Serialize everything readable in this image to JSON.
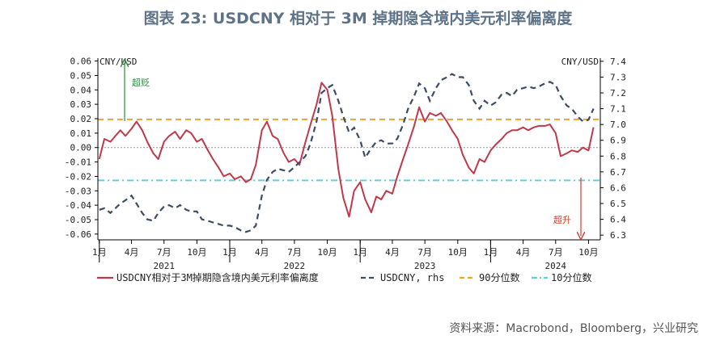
{
  "title": "图表 23: USDCNY 相对于 3M 掉期隐含境内美元利率偏离度",
  "source": "资料来源：Macrobond，Bloomberg，兴业研究",
  "colors": {
    "deviation": "#c0394a",
    "usdcny": "#3d4b63",
    "p90": "#f0a030",
    "p10": "#5fd0e0",
    "title": "#5e7388",
    "zero": "#999999"
  },
  "chart_data": {
    "type": "line",
    "x_tick_labels": [
      "1月",
      "4月",
      "7月",
      "10月",
      "1月",
      "4月",
      "7月",
      "10月",
      "1月",
      "4月",
      "7月",
      "10月",
      "1月",
      "4月",
      "7月",
      "10月"
    ],
    "year_labels": [
      "2021",
      "2022",
      "2023",
      "2024"
    ],
    "left_axis": {
      "label": "CNY/USD",
      "ticks": [
        "0.06",
        "0.05",
        "0.04",
        "0.03",
        "0.02",
        "0.01",
        "0.00",
        "-0.01",
        "-0.02",
        "-0.03",
        "-0.04",
        "-0.05",
        "-0.06"
      ],
      "range": [
        -0.064,
        0.062
      ]
    },
    "right_axis": {
      "label": "CNY/USD",
      "ticks": [
        "7.4",
        "7.3",
        "7.2",
        "7.1",
        "7.0",
        "6.9",
        "6.8",
        "6.7",
        "6.6",
        "6.5",
        "6.4",
        "6.3"
      ],
      "range": [
        6.27,
        7.42
      ]
    },
    "annotations": {
      "top": "超贬",
      "bottom": "超升"
    },
    "series": [
      {
        "name": "USDCNY相对于3M掉期隐含境内美元利率偏离度",
        "axis": "left",
        "x": [
          "2021-01-01",
          "2021-01-15",
          "2021-02-01",
          "2021-02-15",
          "2021-03-01",
          "2021-03-15",
          "2021-04-01",
          "2021-04-15",
          "2021-05-01",
          "2021-05-15",
          "2021-06-01",
          "2021-06-15",
          "2021-07-01",
          "2021-07-15",
          "2021-08-01",
          "2021-08-15",
          "2021-09-01",
          "2021-09-15",
          "2021-10-01",
          "2021-10-15",
          "2021-11-01",
          "2021-11-15",
          "2021-12-01",
          "2021-12-15",
          "2022-01-01",
          "2022-01-15",
          "2022-02-01",
          "2022-02-15",
          "2022-03-01",
          "2022-03-15",
          "2022-04-01",
          "2022-04-15",
          "2022-05-01",
          "2022-05-15",
          "2022-06-01",
          "2022-06-15",
          "2022-07-01",
          "2022-07-15",
          "2022-08-01",
          "2022-08-15",
          "2022-09-01",
          "2022-09-15",
          "2022-10-01",
          "2022-10-15",
          "2022-11-01",
          "2022-11-15",
          "2022-12-01",
          "2022-12-15",
          "2023-01-01",
          "2023-01-15",
          "2023-02-01",
          "2023-02-15",
          "2023-03-01",
          "2023-03-15",
          "2023-04-01",
          "2023-04-15",
          "2023-05-01",
          "2023-05-15",
          "2023-06-01",
          "2023-06-15",
          "2023-07-01",
          "2023-07-15",
          "2023-08-01",
          "2023-08-15",
          "2023-09-01",
          "2023-09-15",
          "2023-10-01",
          "2023-10-15",
          "2023-11-01",
          "2023-11-15",
          "2023-12-01",
          "2023-12-15",
          "2024-01-01",
          "2024-01-15",
          "2024-02-01",
          "2024-02-15",
          "2024-03-01",
          "2024-03-15",
          "2024-04-01",
          "2024-04-15",
          "2024-05-01",
          "2024-05-15",
          "2024-06-01",
          "2024-06-15",
          "2024-07-01",
          "2024-07-15",
          "2024-08-01",
          "2024-08-15",
          "2024-09-01",
          "2024-09-15",
          "2024-10-01",
          "2024-10-15"
        ],
        "values": [
          -0.008,
          0.006,
          0.004,
          0.008,
          0.012,
          0.008,
          0.013,
          0.018,
          0.012,
          0.004,
          -0.004,
          -0.008,
          0.004,
          0.008,
          0.011,
          0.006,
          0.012,
          0.01,
          0.004,
          0.006,
          -0.002,
          -0.008,
          -0.014,
          -0.02,
          -0.018,
          -0.022,
          -0.02,
          -0.024,
          -0.022,
          -0.012,
          0.012,
          0.018,
          0.008,
          0.006,
          -0.004,
          -0.01,
          -0.008,
          -0.012,
          0.004,
          0.016,
          0.03,
          0.045,
          0.04,
          0.022,
          -0.015,
          -0.035,
          -0.048,
          -0.03,
          -0.024,
          -0.036,
          -0.045,
          -0.034,
          -0.036,
          -0.03,
          -0.032,
          -0.02,
          -0.008,
          0.002,
          0.015,
          0.028,
          0.018,
          0.024,
          0.022,
          0.024,
          0.018,
          0.012,
          0.006,
          -0.005,
          -0.014,
          -0.018,
          -0.008,
          -0.01,
          -0.002,
          0.002,
          0.006,
          0.01,
          0.012,
          0.012,
          0.014,
          0.012,
          0.014,
          0.015,
          0.015,
          0.016,
          0.01,
          -0.006,
          -0.004,
          -0.002,
          -0.003,
          0.0,
          -0.002,
          0.014
        ]
      },
      {
        "name": "USDCNY, rhs",
        "axis": "right",
        "x": [
          "2021-01-01",
          "2021-01-15",
          "2021-02-01",
          "2021-02-15",
          "2021-03-01",
          "2021-03-15",
          "2021-04-01",
          "2021-04-15",
          "2021-05-01",
          "2021-05-15",
          "2021-06-01",
          "2021-06-15",
          "2021-07-01",
          "2021-07-15",
          "2021-08-01",
          "2021-08-15",
          "2021-09-01",
          "2021-09-15",
          "2021-10-01",
          "2021-10-15",
          "2021-11-01",
          "2021-11-15",
          "2021-12-01",
          "2021-12-15",
          "2022-01-01",
          "2022-01-15",
          "2022-02-01",
          "2022-02-15",
          "2022-03-01",
          "2022-03-15",
          "2022-04-01",
          "2022-04-15",
          "2022-05-01",
          "2022-05-15",
          "2022-06-01",
          "2022-06-15",
          "2022-07-01",
          "2022-07-15",
          "2022-08-01",
          "2022-08-15",
          "2022-09-01",
          "2022-09-15",
          "2022-10-01",
          "2022-10-15",
          "2022-11-01",
          "2022-11-15",
          "2022-12-01",
          "2022-12-15",
          "2023-01-01",
          "2023-01-15",
          "2023-02-01",
          "2023-02-15",
          "2023-03-01",
          "2023-03-15",
          "2023-04-01",
          "2023-04-15",
          "2023-05-01",
          "2023-05-15",
          "2023-06-01",
          "2023-06-15",
          "2023-07-01",
          "2023-07-15",
          "2023-08-01",
          "2023-08-15",
          "2023-09-01",
          "2023-09-15",
          "2023-10-01",
          "2023-10-15",
          "2023-11-01",
          "2023-11-15",
          "2023-12-01",
          "2023-12-15",
          "2024-01-01",
          "2024-01-15",
          "2024-02-01",
          "2024-02-15",
          "2024-03-01",
          "2024-03-15",
          "2024-04-01",
          "2024-04-15",
          "2024-05-01",
          "2024-05-15",
          "2024-06-01",
          "2024-06-15",
          "2024-07-01",
          "2024-07-15",
          "2024-08-01",
          "2024-08-15",
          "2024-09-01",
          "2024-09-15",
          "2024-10-01",
          "2024-10-15"
        ],
        "values": [
          6.46,
          6.47,
          6.44,
          6.47,
          6.5,
          6.52,
          6.55,
          6.5,
          6.44,
          6.4,
          6.39,
          6.44,
          6.48,
          6.49,
          6.47,
          6.49,
          6.46,
          6.45,
          6.45,
          6.4,
          6.39,
          6.38,
          6.37,
          6.36,
          6.36,
          6.35,
          6.33,
          6.32,
          6.33,
          6.36,
          6.55,
          6.65,
          6.7,
          6.72,
          6.71,
          6.7,
          6.73,
          6.76,
          6.8,
          6.88,
          7.02,
          7.2,
          7.23,
          7.25,
          7.15,
          7.05,
          6.95,
          6.98,
          6.9,
          6.79,
          6.85,
          6.89,
          6.9,
          6.88,
          6.88,
          6.91,
          7.0,
          7.1,
          7.18,
          7.26,
          7.23,
          7.15,
          7.23,
          7.28,
          7.3,
          7.32,
          7.3,
          7.3,
          7.25,
          7.15,
          7.1,
          7.15,
          7.12,
          7.14,
          7.19,
          7.2,
          7.18,
          7.22,
          7.23,
          7.24,
          7.23,
          7.24,
          7.26,
          7.27,
          7.25,
          7.18,
          7.12,
          7.1,
          7.05,
          7.02,
          7.03,
          7.1
        ]
      },
      {
        "name": "90分位数",
        "axis": "left",
        "value": 0.0195
      },
      {
        "name": "10分位数",
        "axis": "left",
        "value": -0.0228
      }
    ]
  }
}
